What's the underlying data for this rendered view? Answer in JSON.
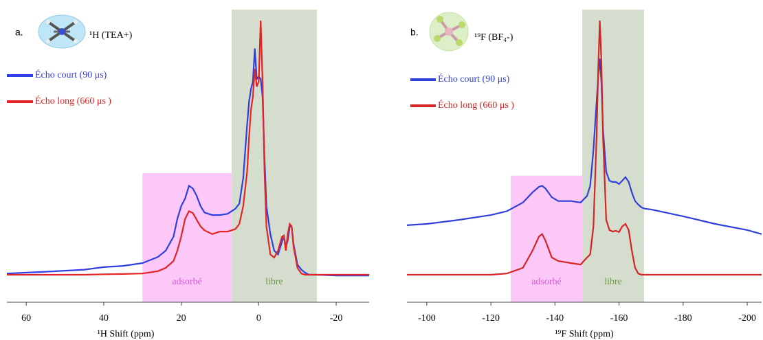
{
  "chart_data": [
    {
      "type": "line",
      "label": "a.",
      "title": "¹H (TEA+)",
      "xlabel": "¹H Shift (ppm)",
      "xlim": [
        65,
        -28.5
      ],
      "xticks": [
        60,
        40,
        20,
        0,
        -20
      ],
      "ylim": [
        -0.108,
        1.043
      ],
      "regions": [
        {
          "label": "adsorbé",
          "range": [
            30,
            7
          ],
          "top": 0.4,
          "color": "#fcc8f8",
          "label_color": "#d35ad3"
        },
        {
          "label": "libre",
          "range": [
            7,
            -15
          ],
          "top": 1.043,
          "color": "#d5ddce",
          "label_color": "#6f9a45"
        }
      ],
      "x": [
        65,
        55,
        45,
        40,
        35,
        30,
        26,
        24,
        22,
        21,
        20,
        19,
        18,
        17,
        16,
        15,
        14,
        12,
        10,
        8,
        6,
        5,
        4,
        3,
        2.5,
        2,
        1.5,
        1,
        0.5,
        0,
        -0.5,
        -1,
        -1.5,
        -2,
        -3,
        -4,
        -5,
        -6,
        -6.5,
        -7,
        -7.5,
        -8,
        -8.5,
        -9,
        -10,
        -11,
        -12,
        -13,
        -15,
        -20,
        -28.5
      ],
      "series": [
        {
          "name": "Écho court (90 μs)",
          "color": "#2f3ee0",
          "values": [
            0.005,
            0.012,
            0.02,
            0.03,
            0.035,
            0.046,
            0.07,
            0.095,
            0.15,
            0.22,
            0.27,
            0.3,
            0.35,
            0.34,
            0.31,
            0.27,
            0.245,
            0.235,
            0.235,
            0.24,
            0.26,
            0.28,
            0.38,
            0.59,
            0.68,
            0.73,
            0.76,
            0.89,
            0.77,
            0.78,
            0.77,
            0.7,
            0.46,
            0.27,
            0.16,
            0.095,
            0.08,
            0.13,
            0.15,
            0.11,
            0.135,
            0.19,
            0.19,
            0.12,
            0.04,
            0.02,
            0.008,
            0,
            0,
            -0.003,
            -0.003
          ]
        },
        {
          "name": "Écho long (660 μs )",
          "color": "#e42424",
          "values": [
            0,
            0,
            0,
            0.002,
            0.003,
            0.005,
            0.014,
            0.027,
            0.054,
            0.095,
            0.15,
            0.22,
            0.25,
            0.243,
            0.216,
            0.19,
            0.175,
            0.16,
            0.17,
            0.17,
            0.18,
            0.2,
            0.27,
            0.405,
            0.54,
            0.65,
            0.7,
            0.81,
            0.74,
            0.76,
            1.0,
            0.76,
            0.405,
            0.19,
            0.08,
            0.068,
            0.095,
            0.15,
            0.154,
            0.095,
            0.16,
            0.2,
            0.19,
            0.11,
            0.027,
            0.005,
            0,
            0,
            0,
            0,
            0
          ]
        }
      ]
    },
    {
      "type": "line",
      "label": "b.",
      "title": "¹⁹F (BF₄-)",
      "xlabel": "¹⁹F Shift (ppm)",
      "xlim": [
        -93.8,
        -204.5
      ],
      "xticks": [
        -100,
        -120,
        -140,
        -160,
        -180,
        -200
      ],
      "ylim": [
        -0.108,
        1.043
      ],
      "regions": [
        {
          "label": "adsorbé",
          "range": [
            -126.2,
            -148.5
          ],
          "top": 0.39,
          "color": "#fcc8f8",
          "label_color": "#d35ad3"
        },
        {
          "label": "libre",
          "range": [
            -148.5,
            -167.8
          ],
          "top": 1.043,
          "color": "#d5ddce",
          "label_color": "#6f9a45"
        }
      ],
      "x": [
        -93.8,
        -100,
        -110,
        -120,
        -125,
        -130,
        -133,
        -135,
        -136,
        -137,
        -139,
        -141,
        -145,
        -148,
        -150,
        -151,
        -152,
        -153,
        -153.5,
        -154,
        -154.5,
        -155,
        -156,
        -157,
        -158,
        -159,
        -160,
        -161,
        -162,
        -163,
        -164,
        -165,
        -166,
        -167,
        -168,
        -170,
        -180,
        -190,
        -200,
        -204.5
      ],
      "series": [
        {
          "name": "Écho court (90 μs)",
          "color": "#3140d8",
          "values": [
            0.195,
            0.2,
            0.216,
            0.235,
            0.25,
            0.284,
            0.324,
            0.346,
            0.35,
            0.34,
            0.305,
            0.29,
            0.29,
            0.284,
            0.31,
            0.35,
            0.49,
            0.68,
            0.78,
            0.85,
            0.76,
            0.57,
            0.405,
            0.37,
            0.365,
            0.365,
            0.357,
            0.37,
            0.384,
            0.365,
            0.324,
            0.29,
            0.276,
            0.265,
            0.26,
            0.257,
            0.23,
            0.2,
            0.176,
            0.16
          ]
        },
        {
          "name": "Écho long (660 μs )",
          "color": "#d42424",
          "values": [
            0,
            0,
            0,
            0,
            0.005,
            0.027,
            0.095,
            0.15,
            0.16,
            0.135,
            0.068,
            0.054,
            0.046,
            0.04,
            0.068,
            0.08,
            0.19,
            0.54,
            0.81,
            1.0,
            0.84,
            0.54,
            0.216,
            0.176,
            0.17,
            0.173,
            0.168,
            0.19,
            0.2,
            0.176,
            0.095,
            0.027,
            0.005,
            0,
            0,
            0,
            0,
            0,
            0,
            0
          ]
        }
      ]
    }
  ]
}
